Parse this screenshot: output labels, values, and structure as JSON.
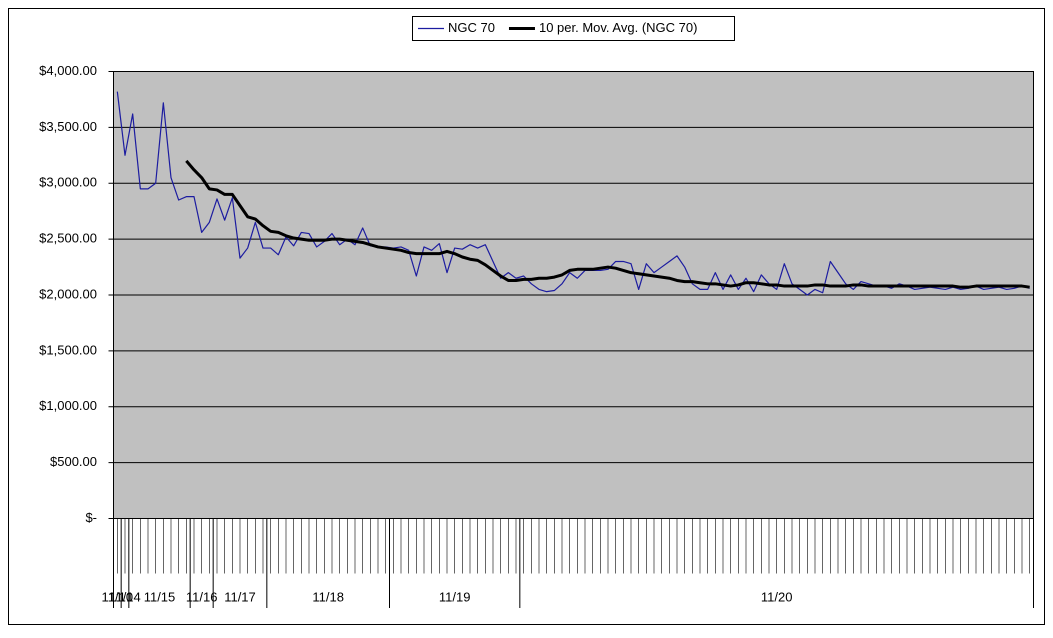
{
  "chart_data": {
    "type": "line",
    "ylim": [
      0,
      4000
    ],
    "yticks": [
      {
        "value": 0,
        "label": "$-"
      },
      {
        "value": 500,
        "label": "$500.00"
      },
      {
        "value": 1000,
        "label": "$1,000.00"
      },
      {
        "value": 1500,
        "label": "$1,500.00"
      },
      {
        "value": 2000,
        "label": "$2,000.00"
      },
      {
        "value": 2500,
        "label": "$2,500.00"
      },
      {
        "value": 3000,
        "label": "$3,000.00"
      },
      {
        "value": 3500,
        "label": "$3,500.00"
      },
      {
        "value": 4000,
        "label": "$4,000.00"
      }
    ],
    "grid": true,
    "legend": "top",
    "categories": [
      null,
      null,
      null,
      null,
      null,
      null,
      null,
      null,
      null,
      null,
      null,
      null,
      null,
      null,
      null,
      null,
      null,
      null,
      null,
      null,
      null,
      null,
      null,
      null,
      null,
      null,
      null,
      null,
      null,
      null,
      null,
      null,
      null,
      null,
      null,
      null,
      null,
      null,
      null,
      null,
      null,
      null,
      null,
      null,
      null,
      null,
      null,
      null,
      null,
      null,
      null,
      null,
      null,
      null,
      null,
      null,
      null,
      null,
      null,
      null,
      null,
      null,
      null,
      null,
      null,
      null,
      null,
      null,
      null,
      null,
      null,
      null,
      null,
      null,
      null,
      null,
      null,
      null,
      null,
      null,
      null,
      null,
      null,
      null,
      null,
      null,
      null,
      null,
      null,
      null,
      null,
      null,
      null,
      null,
      null,
      null,
      null,
      null,
      null,
      null,
      null,
      null,
      null,
      null,
      null,
      null,
      null,
      null,
      null,
      null,
      null,
      null,
      null,
      null,
      null,
      null,
      null,
      null,
      null,
      null
    ],
    "category_groups": [
      {
        "label": "11/10",
        "count": 1
      },
      {
        "label": "11/14",
        "count": 1
      },
      {
        "label": "11/15",
        "count": 8
      },
      {
        "label": "11/16",
        "count": 3
      },
      {
        "label": "11/17",
        "count": 7
      },
      {
        "label": "11/18",
        "count": 16
      },
      {
        "label": "11/19",
        "count": 17
      },
      {
        "label": "11/20",
        "count": 67
      }
    ],
    "series": [
      {
        "name": "NGC 70",
        "color": "#1c1ca0",
        "width": 1.2,
        "values": [
          3820,
          3250,
          3620,
          2950,
          2950,
          3000,
          3720,
          3050,
          2850,
          2880,
          2880,
          2560,
          2650,
          2860,
          2670,
          2870,
          2330,
          2420,
          2650,
          2420,
          2420,
          2360,
          2520,
          2440,
          2560,
          2550,
          2430,
          2480,
          2550,
          2450,
          2500,
          2450,
          2600,
          2440,
          2430,
          2430,
          2420,
          2430,
          2400,
          2170,
          2430,
          2400,
          2460,
          2200,
          2420,
          2410,
          2450,
          2420,
          2450,
          2300,
          2150,
          2200,
          2150,
          2170,
          2100,
          2050,
          2030,
          2040,
          2100,
          2200,
          2150,
          2220,
          2220,
          2220,
          2230,
          2300,
          2300,
          2280,
          2050,
          2280,
          2200,
          2250,
          2300,
          2350,
          2250,
          2100,
          2050,
          2050,
          2200,
          2050,
          2180,
          2050,
          2150,
          2030,
          2180,
          2100,
          2050,
          2280,
          2100,
          2050,
          2000,
          2050,
          2020,
          2300,
          2200,
          2100,
          2050,
          2120,
          2100,
          2080,
          2080,
          2060,
          2100,
          2080,
          2050,
          2060,
          2070,
          2060,
          2050,
          2070,
          2050,
          2060,
          2080,
          2050,
          2060,
          2070,
          2050,
          2060,
          2080,
          2060
        ]
      },
      {
        "name": "10 per. Mov. Avg. (NGC 70)",
        "color": "#000000",
        "width": 3,
        "values": [
          null,
          null,
          null,
          null,
          null,
          null,
          null,
          null,
          null,
          3200,
          3120,
          3050,
          2950,
          2940,
          2900,
          2900,
          2800,
          2700,
          2680,
          2620,
          2570,
          2560,
          2530,
          2510,
          2500,
          2490,
          2490,
          2490,
          2500,
          2500,
          2490,
          2480,
          2470,
          2450,
          2430,
          2420,
          2410,
          2400,
          2380,
          2370,
          2370,
          2370,
          2370,
          2390,
          2370,
          2340,
          2320,
          2310,
          2270,
          2220,
          2170,
          2130,
          2130,
          2140,
          2140,
          2150,
          2150,
          2160,
          2180,
          2220,
          2230,
          2230,
          2230,
          2240,
          2250,
          2240,
          2220,
          2200,
          2190,
          2180,
          2170,
          2160,
          2150,
          2130,
          2120,
          2120,
          2110,
          2100,
          2100,
          2090,
          2080,
          2090,
          2110,
          2110,
          2100,
          2090,
          2090,
          2080,
          2080,
          2080,
          2080,
          2090,
          2090,
          2080,
          2080,
          2080,
          2090,
          2090,
          2080,
          2080,
          2080,
          2080,
          2080,
          2080,
          2080,
          2080,
          2080,
          2080,
          2080,
          2080,
          2070,
          2070,
          2080,
          2080,
          2080,
          2080,
          2080,
          2080,
          2080,
          2070
        ]
      }
    ]
  }
}
